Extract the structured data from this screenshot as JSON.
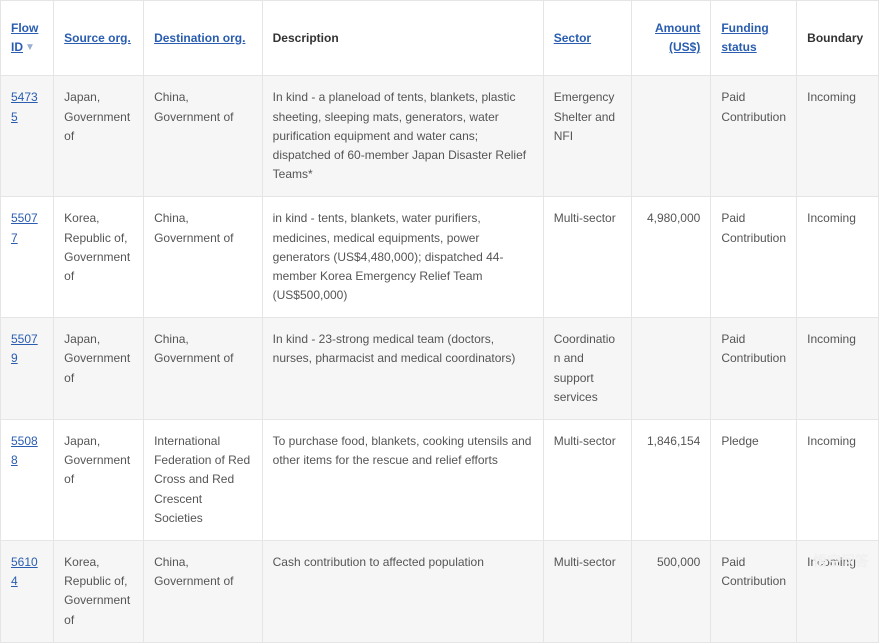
{
  "table": {
    "columns": [
      {
        "key": "flow_id",
        "label": "Flow ID",
        "sortable": true,
        "align": "left",
        "sorted": true
      },
      {
        "key": "source",
        "label": "Source org.",
        "sortable": true,
        "align": "left"
      },
      {
        "key": "dest",
        "label": "Destination org.",
        "sortable": true,
        "align": "left"
      },
      {
        "key": "desc",
        "label": "Description",
        "sortable": false,
        "align": "left"
      },
      {
        "key": "sector",
        "label": "Sector",
        "sortable": true,
        "align": "left"
      },
      {
        "key": "amount",
        "label": "Amount (US$)",
        "sortable": true,
        "align": "right"
      },
      {
        "key": "status",
        "label": "Funding status",
        "sortable": true,
        "align": "left"
      },
      {
        "key": "boundary",
        "label": "Boundary",
        "sortable": false,
        "align": "left"
      }
    ],
    "rows": [
      {
        "flow_id": "54735",
        "source": "Japan, Government of",
        "dest": "China, Government of",
        "desc": "In kind - a planeload of tents, blankets, plastic sheeting, sleeping mats, generators, water purification equipment and water cans; dispatched of 60-member Japan Disaster Relief Teams*",
        "sector": "Emergency Shelter and NFI",
        "amount": "",
        "status": "Paid Contribution",
        "boundary": "Incoming"
      },
      {
        "flow_id": "55077",
        "source": "Korea, Republic of, Government of",
        "dest": "China, Government of",
        "desc": "in kind - tents, blankets, water purifiers, medicines, medical equipments, power generators (US$4,480,000); dispatched 44-member Korea Emergency Relief Team (US$500,000)",
        "sector": "Multi-sector",
        "amount": "4,980,000",
        "status": "Paid Contribution",
        "boundary": "Incoming"
      },
      {
        "flow_id": "55079",
        "source": "Japan, Government of",
        "dest": "China, Government of",
        "desc": "In kind - 23-strong medical team (doctors, nurses, pharmacist and medical coordinators)",
        "sector": "Coordination and support services",
        "amount": "",
        "status": "Paid Contribution",
        "boundary": "Incoming"
      },
      {
        "flow_id": "55088",
        "source": "Japan, Government of",
        "dest": "International Federation of Red Cross and Red Crescent Societies",
        "desc": "To purchase food, blankets, cooking utensils and other items for the rescue and relief efforts",
        "sector": "Multi-sector",
        "amount": "1,846,154",
        "status": "Pledge",
        "boundary": "Incoming"
      },
      {
        "flow_id": "56104",
        "source": "Korea, Republic of, Government of",
        "dest": "China, Government of",
        "desc": "Cash contribution to affected population",
        "sector": "Multi-sector",
        "amount": "500,000",
        "status": "Paid Contribution",
        "boundary": "Incoming"
      }
    ]
  },
  "watermark": "悟空问答",
  "colors": {
    "link": "#2a5db0",
    "border": "#e5e5e5",
    "row_alt_bg": "#f6f6f6",
    "text": "#555555"
  }
}
